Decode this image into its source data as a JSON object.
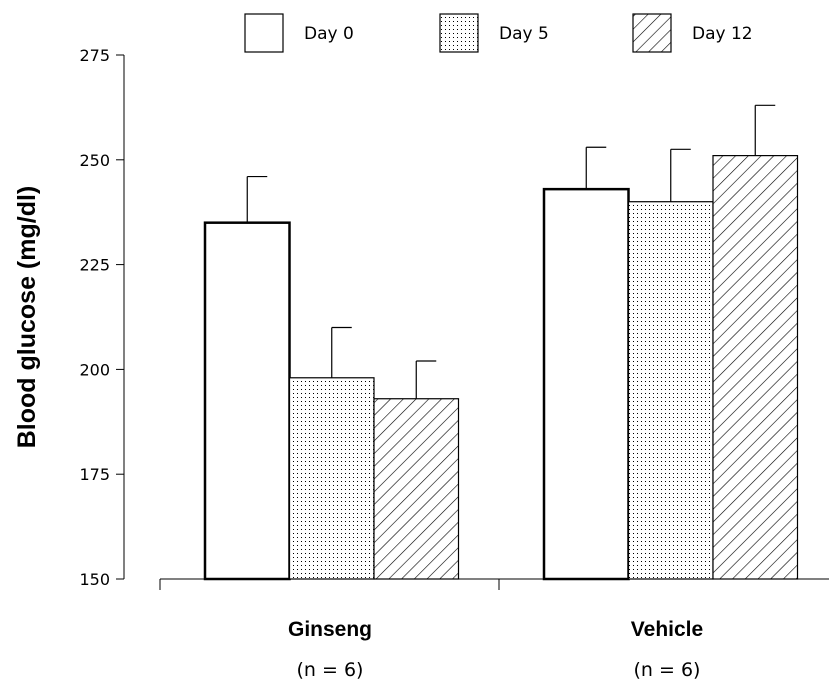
{
  "chart_data": {
    "type": "bar",
    "title": "",
    "ylabel": "Blood glucose (mg/dl)",
    "xlabel": "",
    "ylim": [
      150,
      275
    ],
    "yticks": [
      150,
      175,
      200,
      225,
      250,
      275
    ],
    "categories": [
      "Ginseng",
      "Vehicle"
    ],
    "category_sublabels": [
      "(n = 6)",
      "(n = 6)"
    ],
    "legend_position": "top",
    "series": [
      {
        "name": "Day 0",
        "pattern": "none",
        "values": [
          235,
          243
        ],
        "errors": [
          11,
          10
        ]
      },
      {
        "name": "Day 5",
        "pattern": "dots",
        "values": [
          198,
          240
        ],
        "errors": [
          12,
          12.5
        ]
      },
      {
        "name": "Day 12",
        "pattern": "hatch",
        "values": [
          193,
          251
        ],
        "errors": [
          9,
          12
        ]
      }
    ]
  }
}
